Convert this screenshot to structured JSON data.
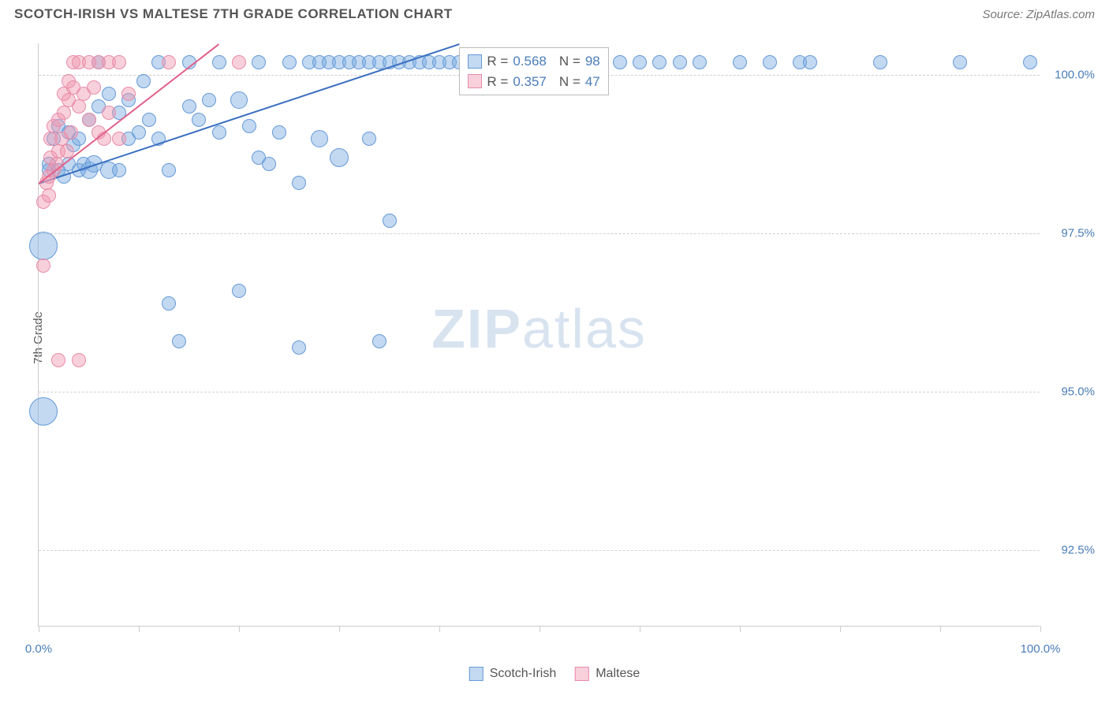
{
  "title": "SCOTCH-IRISH VS MALTESE 7TH GRADE CORRELATION CHART",
  "source": "Source: ZipAtlas.com",
  "y_axis_title": "7th Grade",
  "watermark_bold": "ZIP",
  "watermark_light": "atlas",
  "chart": {
    "type": "scatter",
    "xlim": [
      0,
      100
    ],
    "ylim": [
      91.3,
      100.5
    ],
    "background_color": "#ffffff",
    "grid_color": "#d0d0d0",
    "y_ticks": [
      {
        "value": 100.0,
        "label": "100.0%"
      },
      {
        "value": 97.5,
        "label": "97.5%"
      },
      {
        "value": 95.0,
        "label": "95.0%"
      },
      {
        "value": 92.5,
        "label": "92.5%"
      }
    ],
    "x_ticks": [
      0,
      10,
      20,
      30,
      40,
      50,
      60,
      70,
      80,
      90,
      100
    ],
    "x_labels": [
      {
        "value": 0,
        "label": "0.0%"
      },
      {
        "value": 100,
        "label": "100.0%"
      }
    ],
    "series": [
      {
        "name": "Scotch-Irish",
        "color_fill": "rgba(120,170,225,0.45)",
        "color_stroke": "#6699d8",
        "trend_color": "#3a6fc0",
        "r": 0.568,
        "n": 98,
        "trend": {
          "x1": 0,
          "y1": 98.3,
          "x2": 42,
          "y2": 100.5
        },
        "points": [
          {
            "x": 0.5,
            "y": 97.3,
            "r": 18
          },
          {
            "x": 0.5,
            "y": 94.7,
            "r": 18
          },
          {
            "x": 1,
            "y": 98.6,
            "r": 9
          },
          {
            "x": 1,
            "y": 98.5,
            "r": 9
          },
          {
            "x": 1.5,
            "y": 99.0,
            "r": 9
          },
          {
            "x": 2,
            "y": 98.5,
            "r": 9
          },
          {
            "x": 2,
            "y": 99.2,
            "r": 9
          },
          {
            "x": 2.5,
            "y": 98.4,
            "r": 9
          },
          {
            "x": 3,
            "y": 99.1,
            "r": 9
          },
          {
            "x": 3,
            "y": 98.6,
            "r": 9
          },
          {
            "x": 3.5,
            "y": 98.9,
            "r": 9
          },
          {
            "x": 4,
            "y": 98.5,
            "r": 9
          },
          {
            "x": 4,
            "y": 99.0,
            "r": 9
          },
          {
            "x": 4.5,
            "y": 98.6,
            "r": 9
          },
          {
            "x": 5,
            "y": 98.5,
            "r": 11
          },
          {
            "x": 5,
            "y": 99.3,
            "r": 9
          },
          {
            "x": 5.5,
            "y": 98.6,
            "r": 11
          },
          {
            "x": 6,
            "y": 100.2,
            "r": 9
          },
          {
            "x": 6,
            "y": 99.5,
            "r": 9
          },
          {
            "x": 7,
            "y": 98.5,
            "r": 11
          },
          {
            "x": 7,
            "y": 99.7,
            "r": 9
          },
          {
            "x": 8,
            "y": 98.5,
            "r": 9
          },
          {
            "x": 8,
            "y": 99.4,
            "r": 9
          },
          {
            "x": 9,
            "y": 99.0,
            "r": 9
          },
          {
            "x": 9,
            "y": 99.6,
            "r": 9
          },
          {
            "x": 10,
            "y": 99.1,
            "r": 9
          },
          {
            "x": 10.5,
            "y": 99.9,
            "r": 9
          },
          {
            "x": 11,
            "y": 99.3,
            "r": 9
          },
          {
            "x": 12,
            "y": 100.2,
            "r": 9
          },
          {
            "x": 12,
            "y": 99.0,
            "r": 9
          },
          {
            "x": 13,
            "y": 98.5,
            "r": 9
          },
          {
            "x": 13,
            "y": 96.4,
            "r": 9
          },
          {
            "x": 14,
            "y": 95.8,
            "r": 9
          },
          {
            "x": 15,
            "y": 99.5,
            "r": 9
          },
          {
            "x": 15,
            "y": 100.2,
            "r": 9
          },
          {
            "x": 16,
            "y": 99.3,
            "r": 9
          },
          {
            "x": 17,
            "y": 99.6,
            "r": 9
          },
          {
            "x": 18,
            "y": 99.1,
            "r": 9
          },
          {
            "x": 18,
            "y": 100.2,
            "r": 9
          },
          {
            "x": 20,
            "y": 99.6,
            "r": 11
          },
          {
            "x": 20,
            "y": 96.6,
            "r": 9
          },
          {
            "x": 21,
            "y": 99.2,
            "r": 9
          },
          {
            "x": 22,
            "y": 98.7,
            "r": 9
          },
          {
            "x": 22,
            "y": 100.2,
            "r": 9
          },
          {
            "x": 23,
            "y": 98.6,
            "r": 9
          },
          {
            "x": 24,
            "y": 99.1,
            "r": 9
          },
          {
            "x": 25,
            "y": 100.2,
            "r": 9
          },
          {
            "x": 26,
            "y": 95.7,
            "r": 9
          },
          {
            "x": 26,
            "y": 98.3,
            "r": 9
          },
          {
            "x": 27,
            "y": 100.2,
            "r": 9
          },
          {
            "x": 28,
            "y": 100.2,
            "r": 9
          },
          {
            "x": 28,
            "y": 99.0,
            "r": 11
          },
          {
            "x": 29,
            "y": 100.2,
            "r": 9
          },
          {
            "x": 30,
            "y": 98.7,
            "r": 12
          },
          {
            "x": 30,
            "y": 100.2,
            "r": 9
          },
          {
            "x": 31,
            "y": 100.2,
            "r": 9
          },
          {
            "x": 32,
            "y": 100.2,
            "r": 9
          },
          {
            "x": 33,
            "y": 100.2,
            "r": 9
          },
          {
            "x": 33,
            "y": 99.0,
            "r": 9
          },
          {
            "x": 34,
            "y": 100.2,
            "r": 9
          },
          {
            "x": 34,
            "y": 95.8,
            "r": 9
          },
          {
            "x": 35,
            "y": 97.7,
            "r": 9
          },
          {
            "x": 35,
            "y": 100.2,
            "r": 9
          },
          {
            "x": 36,
            "y": 100.2,
            "r": 9
          },
          {
            "x": 37,
            "y": 100.2,
            "r": 9
          },
          {
            "x": 38,
            "y": 100.2,
            "r": 9
          },
          {
            "x": 39,
            "y": 100.2,
            "r": 9
          },
          {
            "x": 40,
            "y": 100.2,
            "r": 9
          },
          {
            "x": 41,
            "y": 100.2,
            "r": 9
          },
          {
            "x": 42,
            "y": 100.2,
            "r": 9
          },
          {
            "x": 43,
            "y": 100.2,
            "r": 9
          },
          {
            "x": 44,
            "y": 100.2,
            "r": 9
          },
          {
            "x": 45,
            "y": 100.2,
            "r": 9
          },
          {
            "x": 46,
            "y": 100.2,
            "r": 9
          },
          {
            "x": 47,
            "y": 100.2,
            "r": 9
          },
          {
            "x": 48,
            "y": 100.2,
            "r": 9
          },
          {
            "x": 49,
            "y": 100.2,
            "r": 9
          },
          {
            "x": 50,
            "y": 100.2,
            "r": 9
          },
          {
            "x": 51,
            "y": 100.2,
            "r": 9
          },
          {
            "x": 52,
            "y": 100.2,
            "r": 9
          },
          {
            "x": 53,
            "y": 100.2,
            "r": 9
          },
          {
            "x": 54,
            "y": 100.2,
            "r": 9
          },
          {
            "x": 55,
            "y": 100.2,
            "r": 9
          },
          {
            "x": 56,
            "y": 100.2,
            "r": 9
          },
          {
            "x": 58,
            "y": 100.2,
            "r": 9
          },
          {
            "x": 60,
            "y": 100.2,
            "r": 9
          },
          {
            "x": 62,
            "y": 100.2,
            "r": 9
          },
          {
            "x": 64,
            "y": 100.2,
            "r": 9
          },
          {
            "x": 66,
            "y": 100.2,
            "r": 9
          },
          {
            "x": 70,
            "y": 100.2,
            "r": 9
          },
          {
            "x": 73,
            "y": 100.2,
            "r": 9
          },
          {
            "x": 76,
            "y": 100.2,
            "r": 9
          },
          {
            "x": 77,
            "y": 100.2,
            "r": 9
          },
          {
            "x": 84,
            "y": 100.2,
            "r": 9
          },
          {
            "x": 92,
            "y": 100.2,
            "r": 9
          },
          {
            "x": 99,
            "y": 100.2,
            "r": 9
          }
        ]
      },
      {
        "name": "Maltese",
        "color_fill": "rgba(240,150,175,0.45)",
        "color_stroke": "#e88ba8",
        "trend_color": "#e06088",
        "r": 0.357,
        "n": 47,
        "trend": {
          "x1": 0,
          "y1": 98.3,
          "x2": 18,
          "y2": 100.5
        },
        "points": [
          {
            "x": 0.5,
            "y": 97.0,
            "r": 9
          },
          {
            "x": 0.5,
            "y": 98.0,
            "r": 9
          },
          {
            "x": 0.8,
            "y": 98.3,
            "r": 9
          },
          {
            "x": 1,
            "y": 98.4,
            "r": 9
          },
          {
            "x": 1,
            "y": 98.1,
            "r": 9
          },
          {
            "x": 1.2,
            "y": 99.0,
            "r": 9
          },
          {
            "x": 1.2,
            "y": 98.7,
            "r": 9
          },
          {
            "x": 1.5,
            "y": 98.5,
            "r": 9
          },
          {
            "x": 1.5,
            "y": 99.2,
            "r": 9
          },
          {
            "x": 1.8,
            "y": 98.6,
            "r": 9
          },
          {
            "x": 2,
            "y": 99.3,
            "r": 9
          },
          {
            "x": 2,
            "y": 98.8,
            "r": 9
          },
          {
            "x": 2,
            "y": 95.5,
            "r": 9
          },
          {
            "x": 2.3,
            "y": 99.0,
            "r": 9
          },
          {
            "x": 2.5,
            "y": 99.4,
            "r": 9
          },
          {
            "x": 2.5,
            "y": 99.7,
            "r": 9
          },
          {
            "x": 2.8,
            "y": 98.8,
            "r": 9
          },
          {
            "x": 3,
            "y": 99.6,
            "r": 9
          },
          {
            "x": 3,
            "y": 99.9,
            "r": 9
          },
          {
            "x": 3.2,
            "y": 99.1,
            "r": 9
          },
          {
            "x": 3.5,
            "y": 99.8,
            "r": 9
          },
          {
            "x": 3.5,
            "y": 100.2,
            "r": 9
          },
          {
            "x": 4,
            "y": 99.5,
            "r": 9
          },
          {
            "x": 4,
            "y": 100.2,
            "r": 9
          },
          {
            "x": 4,
            "y": 95.5,
            "r": 9
          },
          {
            "x": 4.5,
            "y": 99.7,
            "r": 9
          },
          {
            "x": 5,
            "y": 100.2,
            "r": 9
          },
          {
            "x": 5,
            "y": 99.3,
            "r": 9
          },
          {
            "x": 5.5,
            "y": 99.8,
            "r": 9
          },
          {
            "x": 6,
            "y": 100.2,
            "r": 9
          },
          {
            "x": 6,
            "y": 99.1,
            "r": 9
          },
          {
            "x": 6.5,
            "y": 99.0,
            "r": 9
          },
          {
            "x": 7,
            "y": 100.2,
            "r": 9
          },
          {
            "x": 7,
            "y": 99.4,
            "r": 9
          },
          {
            "x": 8,
            "y": 100.2,
            "r": 9
          },
          {
            "x": 8,
            "y": 99.0,
            "r": 9
          },
          {
            "x": 9,
            "y": 99.7,
            "r": 9
          },
          {
            "x": 13,
            "y": 100.2,
            "r": 9
          },
          {
            "x": 20,
            "y": 100.2,
            "r": 9
          }
        ]
      }
    ],
    "stats_box": {
      "rows": [
        {
          "swatch_fill": "rgba(120,170,225,0.45)",
          "swatch_stroke": "#6699d8",
          "r_label": "R =",
          "r": "0.568",
          "n_label": "N =",
          "n": "98"
        },
        {
          "swatch_fill": "rgba(240,150,175,0.45)",
          "swatch_stroke": "#e88ba8",
          "r_label": "R =",
          "r": "0.357",
          "n_label": "N =",
          "n": "47"
        }
      ]
    },
    "bottom_legend": [
      {
        "swatch_fill": "rgba(120,170,225,0.45)",
        "swatch_stroke": "#6699d8",
        "label": "Scotch-Irish"
      },
      {
        "swatch_fill": "rgba(240,150,175,0.45)",
        "swatch_stroke": "#e88ba8",
        "label": "Maltese"
      }
    ]
  }
}
